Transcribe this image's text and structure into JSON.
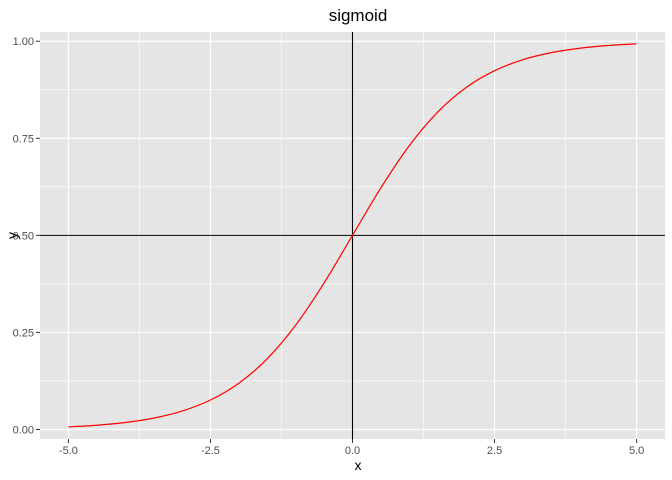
{
  "chart_data": {
    "type": "line",
    "title": "sigmoid",
    "xlabel": "x",
    "ylabel": "y",
    "xlim": [
      -5.5,
      5.5
    ],
    "ylim": [
      -0.0245,
      1.0238
    ],
    "x_ticks": [
      -5.0,
      -2.5,
      0.0,
      2.5,
      5.0
    ],
    "x_tick_labels": [
      "-5.0",
      "-2.5",
      "0.0",
      "2.5",
      "5.0"
    ],
    "y_ticks": [
      0.0,
      0.25,
      0.5,
      0.75,
      1.0
    ],
    "y_tick_labels": [
      "0.00",
      "0.25",
      "0.50",
      "0.75",
      "1.00"
    ],
    "x_minor_ticks": [
      -3.75,
      -1.25,
      1.25,
      3.75
    ],
    "y_minor_ticks": [
      0.125,
      0.375,
      0.625,
      0.875
    ],
    "grid": true,
    "reference_lines": {
      "vertical_x": 0,
      "horizontal_y": 0.5,
      "color": "#000000"
    },
    "series": [
      {
        "color": "#ff0000",
        "x": [
          -5.0,
          -4.5,
          -4.0,
          -3.5,
          -3.0,
          -2.5,
          -2.0,
          -1.5,
          -1.0,
          -0.5,
          0.0,
          0.5,
          1.0,
          1.5,
          2.0,
          2.5,
          3.0,
          3.5,
          4.0,
          4.5,
          5.0
        ],
        "y": [
          0.0067,
          0.011,
          0.018,
          0.0293,
          0.0474,
          0.0759,
          0.1192,
          0.1824,
          0.2689,
          0.3775,
          0.5,
          0.6225,
          0.7311,
          0.8176,
          0.8808,
          0.9241,
          0.9526,
          0.9707,
          0.982,
          0.989,
          0.9933
        ]
      }
    ],
    "colors": {
      "panel": "#e5e5e5",
      "grid": "#ffffff",
      "tick": "#333333",
      "tick_label": "#4d4d4d"
    }
  }
}
